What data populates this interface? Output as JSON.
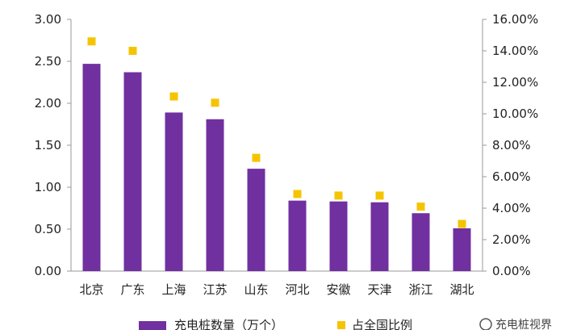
{
  "chart_data": {
    "type": "bar",
    "categories": [
      "北京",
      "广东",
      "上海",
      "江苏",
      "山东",
      "河北",
      "安徽",
      "天津",
      "浙江",
      "湖北"
    ],
    "series": [
      {
        "name": "充电桩数量（万个）",
        "kind": "bar",
        "axis": "left",
        "color": "#7030A0",
        "values": [
          2.47,
          2.37,
          1.89,
          1.81,
          1.22,
          0.84,
          0.83,
          0.82,
          0.69,
          0.51
        ]
      },
      {
        "name": "占全国比例",
        "kind": "scatter",
        "axis": "right",
        "color": "#F5C400",
        "values": [
          0.146,
          0.14,
          0.111,
          0.107,
          0.072,
          0.049,
          0.048,
          0.048,
          0.041,
          0.03
        ]
      }
    ],
    "y_left": {
      "min": 0,
      "max": 3.0,
      "tick_labels": [
        "0.00",
        "0.50",
        "1.00",
        "1.50",
        "2.00",
        "2.50",
        "3.00"
      ]
    },
    "y_right": {
      "min": 0,
      "max": 0.16,
      "tick_labels": [
        "0.00%",
        "2.00%",
        "4.00%",
        "6.00%",
        "8.00%",
        "10.00%",
        "12.00%",
        "14.00%",
        "16.00%"
      ]
    },
    "grid": false,
    "legend_position": "bottom"
  },
  "watermark": {
    "text": "充电桩视界"
  }
}
